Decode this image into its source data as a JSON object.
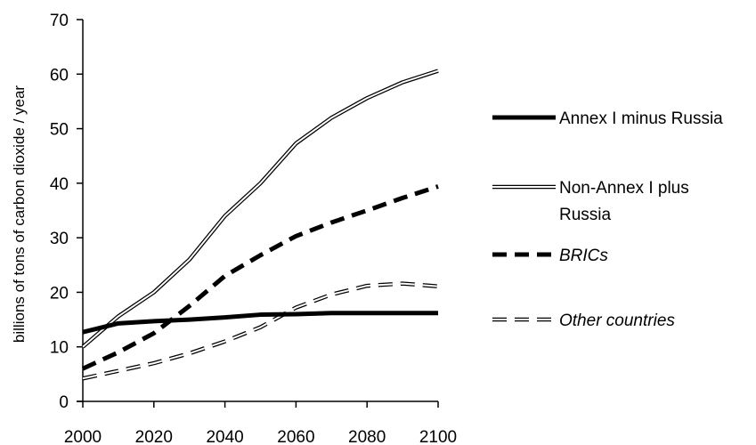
{
  "chart_data": {
    "type": "line",
    "title": "",
    "xlabel": "",
    "ylabel": "billions of tons of carbon dioxide / year",
    "xlim": [
      2000,
      2100
    ],
    "ylim": [
      0,
      70
    ],
    "x_ticks": [
      "2000",
      "2020",
      "2040",
      "2060",
      "2080",
      "2100"
    ],
    "y_ticks": [
      "0",
      "10",
      "20",
      "30",
      "40",
      "50",
      "60",
      "70"
    ],
    "grid": false,
    "legend_position": "right",
    "x": [
      2000,
      2010,
      2020,
      2030,
      2040,
      2050,
      2060,
      2070,
      2080,
      2090,
      2100
    ],
    "series": [
      {
        "name": "Annex I minus Russia",
        "style": "solid-black-thick",
        "values": [
          12.7,
          14.3,
          14.7,
          15.0,
          15.4,
          15.9,
          16.0,
          16.2,
          16.2,
          16.2,
          16.2
        ]
      },
      {
        "name": "Non-Annex I plus Russia",
        "style": "double-outline",
        "values": [
          10.0,
          15.6,
          20.0,
          26.0,
          34.0,
          40.0,
          47.3,
          52.0,
          55.6,
          58.5,
          60.6
        ]
      },
      {
        "name": "BRICs",
        "style": "dashed-black",
        "italic": true,
        "values": [
          6.0,
          9.0,
          12.5,
          17.5,
          23.0,
          26.8,
          30.3,
          32.8,
          35.0,
          37.3,
          39.4
        ]
      },
      {
        "name": "Other countries",
        "style": "dashed-outline",
        "italic": true,
        "values": [
          4.2,
          5.6,
          7.0,
          8.8,
          11.0,
          13.6,
          17.2,
          19.6,
          21.2,
          21.6,
          21.1
        ]
      }
    ]
  },
  "legend_lines": [
    [
      "Annex I minus Russia"
    ],
    [
      "Non-Annex I plus",
      "Russia"
    ],
    [
      "BRICs"
    ],
    [
      "Other countries"
    ]
  ]
}
